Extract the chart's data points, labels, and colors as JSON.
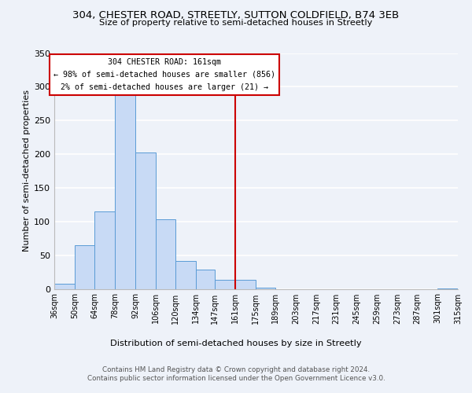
{
  "title1": "304, CHESTER ROAD, STREETLY, SUTTON COLDFIELD, B74 3EB",
  "title2": "Size of property relative to semi-detached houses in Streetly",
  "xlabel": "Distribution of semi-detached houses by size in Streetly",
  "ylabel": "Number of semi-detached properties",
  "bar_color": "#c8daf5",
  "bar_edge_color": "#5a9bd5",
  "bins": [
    36,
    50,
    64,
    78,
    92,
    106,
    120,
    134,
    147,
    161,
    175,
    189,
    203,
    217,
    231,
    245,
    259,
    273,
    287,
    301,
    315
  ],
  "counts": [
    8,
    65,
    115,
    290,
    202,
    103,
    42,
    29,
    13,
    13,
    2,
    0,
    0,
    0,
    0,
    0,
    0,
    0,
    0,
    1
  ],
  "tick_labels": [
    "36sqm",
    "50sqm",
    "64sqm",
    "78sqm",
    "92sqm",
    "106sqm",
    "120sqm",
    "134sqm",
    "147sqm",
    "161sqm",
    "175sqm",
    "189sqm",
    "203sqm",
    "217sqm",
    "231sqm",
    "245sqm",
    "259sqm",
    "273sqm",
    "287sqm",
    "301sqm",
    "315sqm"
  ],
  "property_size": 161,
  "property_label": "304 CHESTER ROAD: 161sqm",
  "pct_smaller": 98,
  "n_smaller": 856,
  "pct_larger": 2,
  "n_larger": 21,
  "vline_color": "#cc0000",
  "annotation_box_color": "#ffffff",
  "annotation_box_edge": "#cc0000",
  "ylim": [
    0,
    350
  ],
  "yticks": [
    0,
    50,
    100,
    150,
    200,
    250,
    300,
    350
  ],
  "background_color": "#eef2f9",
  "grid_color": "#ffffff",
  "footer1": "Contains HM Land Registry data © Crown copyright and database right 2024.",
  "footer2": "Contains public sector information licensed under the Open Government Licence v3.0."
}
